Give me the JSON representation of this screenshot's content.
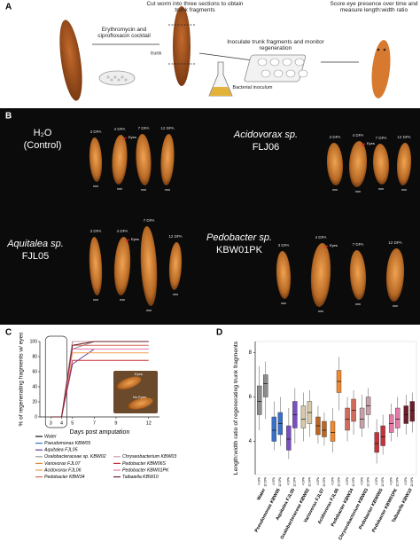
{
  "panel_a": {
    "label": "A",
    "steps": [
      "Cut worm into three sections to obtain trunk fragments",
      "Score eye presence over time and measure length:width ratio"
    ],
    "captions": [
      "Erythromycin and ciprofloxacin cocktail",
      "trunk",
      "Inoculate trunk fragments and monitor regeneration",
      "Bacterial inoculum"
    ]
  },
  "panel_b": {
    "label": "B",
    "days": [
      "3 DPA",
      "4 DPA",
      "7 DPA",
      "12 DPA"
    ],
    "eye_label": "Eyes",
    "groups": [
      {
        "lines": [
          "H₂O",
          "(Control)"
        ]
      },
      {
        "lines": [
          "Acidovorax sp.",
          "FLJ06"
        ]
      },
      {
        "lines": [
          "Aquitalea sp.",
          "FJL05"
        ]
      },
      {
        "lines": [
          "Pedobacter sp.",
          "KBW01PK"
        ]
      }
    ]
  },
  "panel_c": {
    "label": "C",
    "type": "line",
    "ylabel": "% of regenerating fragments w/ eyes",
    "xlabel": "Days post amputation",
    "x": [
      3,
      4,
      5,
      7,
      9,
      12
    ],
    "xlim": [
      2,
      13
    ],
    "xticks": [
      3,
      4,
      5,
      7,
      9,
      12
    ],
    "ylim": [
      0,
      100
    ],
    "yticks": [
      0,
      20,
      40,
      60,
      80,
      100
    ],
    "inset_labels": [
      "Eyes",
      "No Eyes"
    ],
    "series": [
      {
        "name": "Water",
        "color": "#111111",
        "values": [
          0,
          0,
          100,
          100,
          100,
          100
        ]
      },
      {
        "name": "Pseudomonas KBW05",
        "color": "#3a6fc4",
        "values": [
          0,
          0,
          90,
          100,
          100,
          100
        ]
      },
      {
        "name": "Aquitalea FJL05",
        "color": "#5b3a9b",
        "values": [
          0,
          0,
          70,
          90,
          90,
          90
        ]
      },
      {
        "name": "Oxalobacteraceae sp. KBW02",
        "color": "#9a9a9a",
        "values": [
          0,
          0,
          90,
          100,
          100,
          100
        ]
      },
      {
        "name": "Variovorax FJL07",
        "color": "#e08a2e",
        "values": [
          0,
          0,
          95,
          100,
          100,
          100
        ]
      },
      {
        "name": "Acidovorax FJL06",
        "color": "#f0a050",
        "values": [
          0,
          0,
          85,
          85,
          85,
          85
        ]
      },
      {
        "name": "Pedobacter KBW34",
        "color": "#d06a5a",
        "values": [
          0,
          0,
          95,
          95,
          95,
          95
        ]
      },
      {
        "name": "Chryseobacterium KBW03",
        "color": "#c9a0a8",
        "values": [
          0,
          0,
          100,
          100,
          100,
          100
        ]
      },
      {
        "name": "Pedobacter KBW06S",
        "color": "#c8303a",
        "values": [
          0,
          0,
          75,
          75,
          75,
          75
        ]
      },
      {
        "name": "Pedobacter KBW01PK",
        "color": "#e57aa8",
        "values": [
          0,
          0,
          90,
          90,
          90,
          90
        ]
      },
      {
        "name": "Taibaiella KBW10",
        "color": "#6b1f2a",
        "values": [
          0,
          0,
          95,
          100,
          100,
          100
        ]
      }
    ]
  },
  "panel_d": {
    "label": "D",
    "type": "box",
    "ylabel": "Length:width ratio of regenerating trunk fragments",
    "ylim": [
      2.5,
      8.5
    ],
    "yticks": [
      4,
      6,
      8
    ],
    "sublabels": [
      "4 DPA",
      "12 DPA"
    ],
    "categories": [
      "Water",
      "Pseudomonas KBW05",
      "Aquitalea FJL05",
      "Oxalobacteraceae KBW02",
      "Variovorax FJL07",
      "Acidovorax FJL06",
      "Pedobacter KBW34",
      "Chryseobacterium KBW03",
      "Pedobacter KBW06S",
      "Pedobacter KBW01PK",
      "Taibaiella KBW10"
    ],
    "colors": [
      "#8c8c8c",
      "#3a6fc4",
      "#7a4fc0",
      "#d8c9a8",
      "#c0651e",
      "#f08a30",
      "#d06a5a",
      "#c9a0a8",
      "#c8303a",
      "#e57aa8",
      "#6b1f2a"
    ],
    "boxes": [
      [
        {
          "min": 4.5,
          "q1": 5.2,
          "median": 5.8,
          "q3": 6.5,
          "max": 7.4
        },
        {
          "min": 5.0,
          "q1": 6.0,
          "median": 6.6,
          "q3": 7.0,
          "max": 7.6
        }
      ],
      [
        {
          "min": 3.6,
          "q1": 4.0,
          "median": 4.5,
          "q3": 5.1,
          "max": 5.8
        },
        {
          "min": 3.8,
          "q1": 4.3,
          "median": 4.8,
          "q3": 5.3,
          "max": 6.0
        }
      ],
      [
        {
          "min": 3.2,
          "q1": 3.6,
          "median": 4.1,
          "q3": 4.7,
          "max": 5.5
        },
        {
          "min": 3.9,
          "q1": 4.6,
          "median": 5.2,
          "q3": 5.8,
          "max": 6.4
        }
      ],
      [
        {
          "min": 4.0,
          "q1": 4.6,
          "median": 5.0,
          "q3": 5.6,
          "max": 6.2
        },
        {
          "min": 4.2,
          "q1": 4.8,
          "median": 5.3,
          "q3": 5.8,
          "max": 6.3
        }
      ],
      [
        {
          "min": 3.9,
          "q1": 4.3,
          "median": 4.7,
          "q3": 5.1,
          "max": 5.6
        },
        {
          "min": 3.8,
          "q1": 4.2,
          "median": 4.5,
          "q3": 4.9,
          "max": 5.3
        }
      ],
      [
        {
          "min": 3.5,
          "q1": 4.0,
          "median": 4.4,
          "q3": 4.9,
          "max": 5.5
        },
        {
          "min": 5.4,
          "q1": 6.2,
          "median": 6.7,
          "q3": 7.2,
          "max": 7.8
        }
      ],
      [
        {
          "min": 4.0,
          "q1": 4.5,
          "median": 5.0,
          "q3": 5.5,
          "max": 6.0
        },
        {
          "min": 4.3,
          "q1": 4.9,
          "median": 5.4,
          "q3": 5.9,
          "max": 6.3
        }
      ],
      [
        {
          "min": 4.2,
          "q1": 4.6,
          "median": 5.0,
          "q3": 5.5,
          "max": 6.1
        },
        {
          "min": 4.6,
          "q1": 5.2,
          "median": 5.6,
          "q3": 6.0,
          "max": 6.4
        }
      ],
      [
        {
          "min": 3.0,
          "q1": 3.5,
          "median": 3.9,
          "q3": 4.4,
          "max": 5.0
        },
        {
          "min": 3.4,
          "q1": 3.8,
          "median": 4.2,
          "q3": 4.7,
          "max": 5.2
        }
      ],
      [
        {
          "min": 4.0,
          "q1": 4.4,
          "median": 4.8,
          "q3": 5.2,
          "max": 5.7
        },
        {
          "min": 4.2,
          "q1": 4.6,
          "median": 5.0,
          "q3": 5.5,
          "max": 6.0
        }
      ],
      [
        {
          "min": 4.3,
          "q1": 4.8,
          "median": 5.2,
          "q3": 5.6,
          "max": 6.1
        },
        {
          "min": 4.4,
          "q1": 4.9,
          "median": 5.4,
          "q3": 5.8,
          "max": 6.2
        }
      ]
    ]
  }
}
